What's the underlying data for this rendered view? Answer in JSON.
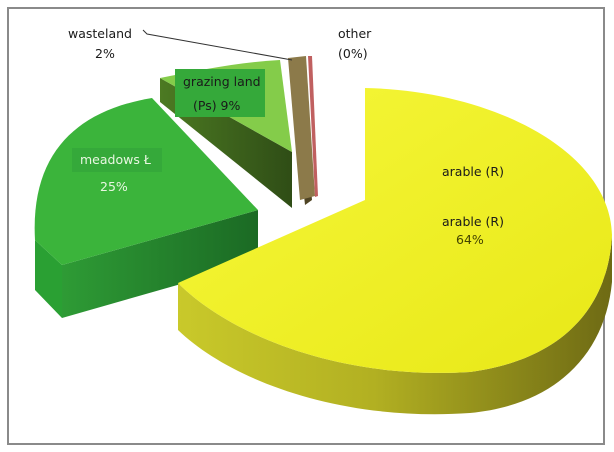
{
  "chart_data": {
    "type": "pie",
    "title": "",
    "slices": [
      {
        "label": "arable (R)",
        "value": 64,
        "text": "64%",
        "color": "#eef01e",
        "side_color": "#8a8a10"
      },
      {
        "label": "meadows Ł",
        "value": 25,
        "text": "25%",
        "color": "#3bb43b",
        "side_color": "#1f6b24"
      },
      {
        "label": "grazing land (Ps)",
        "value": 9,
        "text": "9%",
        "color": "#84cc4a",
        "side_color": "#3e5f1e"
      },
      {
        "label": "wasteland",
        "value": 2,
        "text": "2%",
        "color": "#8c7a4a",
        "side_color": "#4f4424"
      },
      {
        "label": "other",
        "value": 0,
        "text": "(0%)",
        "color": "#c06060",
        "side_color": "#703030"
      }
    ],
    "labels": {
      "arable_name_top": "arable (R)",
      "arable_name": "arable (R)",
      "arable_pct": "64%",
      "meadows_name": "meadows Ł",
      "meadows_pct": "25%",
      "grazing_line1": "grazing land",
      "grazing_line2": "(Ps) 9%",
      "wasteland_name": "wasteland",
      "wasteland_pct": "2%",
      "other_name": "other",
      "other_pct": "(0%)"
    },
    "legend": "none",
    "grid": false
  }
}
